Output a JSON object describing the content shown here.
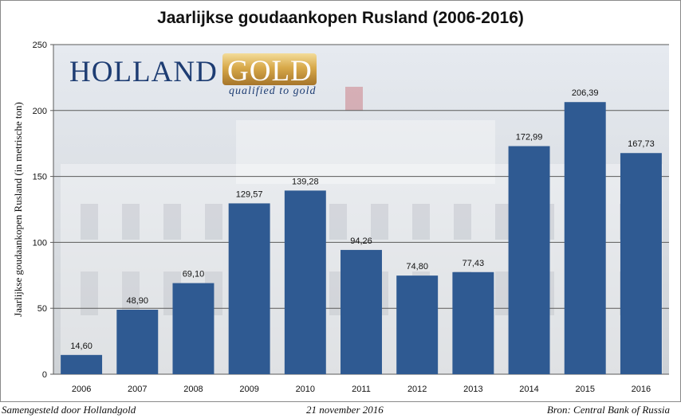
{
  "chart_data": {
    "type": "bar",
    "title": "Jaarlijkse goudaankopen Rusland (2006-2016)",
    "ylabel": "Jaarlijkse goudaankopen Rusland (in metrische ton)",
    "xlabel": "",
    "ylim": [
      0,
      250
    ],
    "yticks": [
      0,
      50,
      100,
      150,
      200,
      250
    ],
    "grid": true,
    "categories": [
      "2006",
      "2007",
      "2008",
      "2009",
      "2010",
      "2011",
      "2012",
      "2013",
      "2014",
      "2015",
      "2016"
    ],
    "values": [
      14.6,
      48.9,
      69.1,
      129.57,
      139.28,
      94.26,
      74.8,
      77.43,
      172.99,
      206.39,
      167.73
    ],
    "data_labels": [
      "14,60",
      "48,90",
      "69,10",
      "129,57",
      "139,28",
      "94,26",
      "74,80",
      "77,43",
      "172,99",
      "206,39",
      "167,73"
    ],
    "bar_color": "#2f5a92"
  },
  "logo": {
    "word1": "HOLLAND",
    "word2": "GOLD",
    "tagline": "qualified to gold"
  },
  "footer": {
    "left": "Samengesteld door Hollandgold",
    "center": "21 november 2016",
    "right": "Bron: Central Bank of Russia"
  }
}
